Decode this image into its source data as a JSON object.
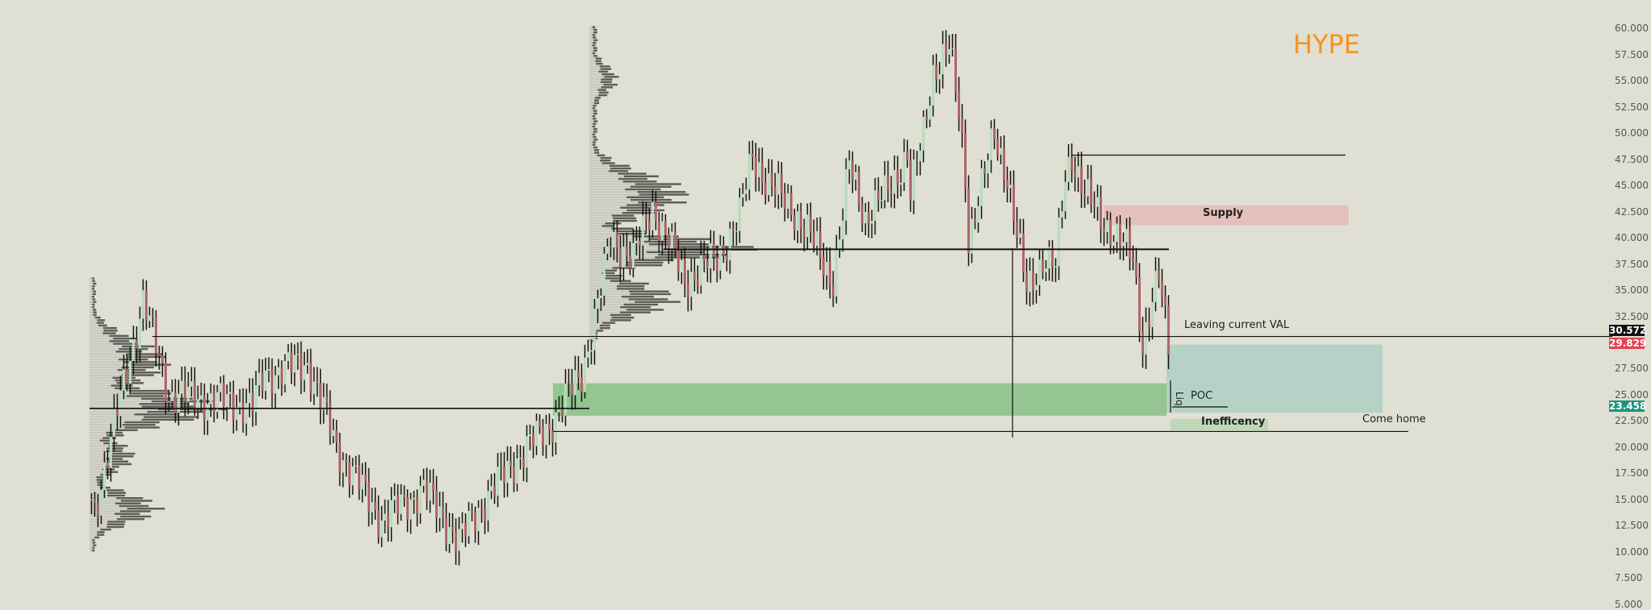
{
  "title": "HYPE",
  "colors": {
    "background": "#dfdfd3",
    "up_candle": "#b6dcbc",
    "down_candle": "#b0656a",
    "wick": "#111111",
    "profile_light": "#c9c9c1",
    "profile_dark": "#5d5d57",
    "title": "#f7931a",
    "supply": "#e3c0bc",
    "green_zone": "#95c590",
    "target_zone": "#b4d3c6",
    "inefficiency": "#bfd8b8"
  },
  "chart_data": {
    "type": "candlestick",
    "ylim": [
      5,
      62.5
    ],
    "y_ticks": [
      "60.000",
      "57.500",
      "55.000",
      "52.500",
      "50.000",
      "47.500",
      "45.000",
      "42.500",
      "40.000",
      "37.500",
      "35.000",
      "32.500",
      "27.500",
      "25.000",
      "22.500",
      "20.000",
      "17.500",
      "15.000",
      "12.500",
      "10.000",
      "7.500",
      "5.000"
    ],
    "y_tick_values": [
      60,
      57.5,
      55,
      52.5,
      50,
      47.5,
      45,
      42.5,
      40,
      37.5,
      35,
      32.5,
      27.5,
      25,
      22.5,
      20,
      17.5,
      15,
      12.5,
      10,
      7.5,
      5
    ],
    "price_path": [
      [
        0,
        15
      ],
      [
        1,
        14
      ],
      [
        16,
        34
      ],
      [
        24,
        25
      ],
      [
        50,
        24
      ],
      [
        54,
        27
      ],
      [
        67,
        28
      ],
      [
        76,
        20
      ],
      [
        90,
        13
      ],
      [
        103,
        16
      ],
      [
        114,
        11
      ],
      [
        122,
        15
      ],
      [
        135,
        20
      ],
      [
        142,
        22
      ],
      [
        152,
        27
      ],
      [
        155,
        31
      ],
      [
        158,
        35
      ],
      [
        161,
        40
      ],
      [
        168,
        38
      ],
      [
        174,
        43
      ],
      [
        181,
        38
      ],
      [
        184,
        36
      ],
      [
        194,
        38
      ],
      [
        201,
        42
      ],
      [
        205,
        48
      ],
      [
        210,
        45
      ],
      [
        217,
        43
      ],
      [
        223,
        40
      ],
      [
        230,
        36
      ],
      [
        233,
        42
      ],
      [
        235,
        47
      ],
      [
        240,
        42
      ],
      [
        246,
        44
      ],
      [
        253,
        48
      ],
      [
        254,
        44
      ],
      [
        258,
        50
      ],
      [
        261,
        56
      ],
      [
        266,
        58
      ],
      [
        269,
        52
      ],
      [
        271,
        46
      ],
      [
        272,
        40
      ],
      [
        277,
        46
      ],
      [
        280,
        50
      ],
      [
        284,
        46
      ],
      [
        287,
        40
      ],
      [
        290,
        35
      ],
      [
        295,
        38
      ],
      [
        299,
        37
      ],
      [
        302,
        46
      ],
      [
        304,
        48
      ],
      [
        308,
        44
      ],
      [
        313,
        42
      ],
      [
        318,
        40
      ],
      [
        323,
        38
      ],
      [
        326,
        30
      ],
      [
        329,
        34
      ],
      [
        331,
        36
      ],
      [
        334,
        29.8
      ]
    ],
    "price_tags": [
      {
        "value": 30.572,
        "label": "30.572",
        "color": "#111111"
      },
      {
        "value": 29.829,
        "label": "29.829",
        "color": "#e8404f"
      },
      {
        "value": 23.458,
        "label": "23.458",
        "color": "#17977a"
      }
    ],
    "volume_profiles": [
      {
        "range": [
          10,
          36
        ],
        "poc": 23.6,
        "peaks": [
          [
            23.6,
            1.0,
            1.6
          ],
          [
            14,
            0.55,
            1.4
          ],
          [
            28,
            0.6,
            2.2
          ],
          [
            19,
            0.35,
            1.5
          ]
        ]
      },
      {
        "range": [
          30,
          60
        ],
        "poc": 38.8,
        "peaks": [
          [
            38.8,
            1.0,
            1.2
          ],
          [
            44,
            0.62,
            2.0
          ],
          [
            34,
            0.55,
            1.6
          ],
          [
            55,
            0.18,
            1.5
          ]
        ]
      }
    ],
    "levels": [
      {
        "price": 30.572,
        "name": "val-line"
      },
      {
        "price": 38.9,
        "name": "upper-poc-line"
      },
      {
        "price": 23.7,
        "name": "lower-poc-line"
      },
      {
        "price": 47.9,
        "name": "swing-high-line"
      },
      {
        "price": 21.5,
        "name": "come-home-line"
      }
    ],
    "zones": [
      {
        "name": "supply-zone",
        "top": 43.1,
        "bottom": 41.2
      },
      {
        "name": "green-zone",
        "top": 26.1,
        "bottom": 23.0
      },
      {
        "name": "target-zone",
        "top": 29.8,
        "bottom": 23.3
      },
      {
        "name": "inefficiency-zone",
        "top": 22.7,
        "bottom": 21.6
      }
    ]
  },
  "annotations": {
    "supply": "Supply",
    "leaving_val": "Leaving current VAL",
    "poc": "POC",
    "liq": "Liq",
    "inefficiency": "Inefficency",
    "come_home": "Come home"
  }
}
